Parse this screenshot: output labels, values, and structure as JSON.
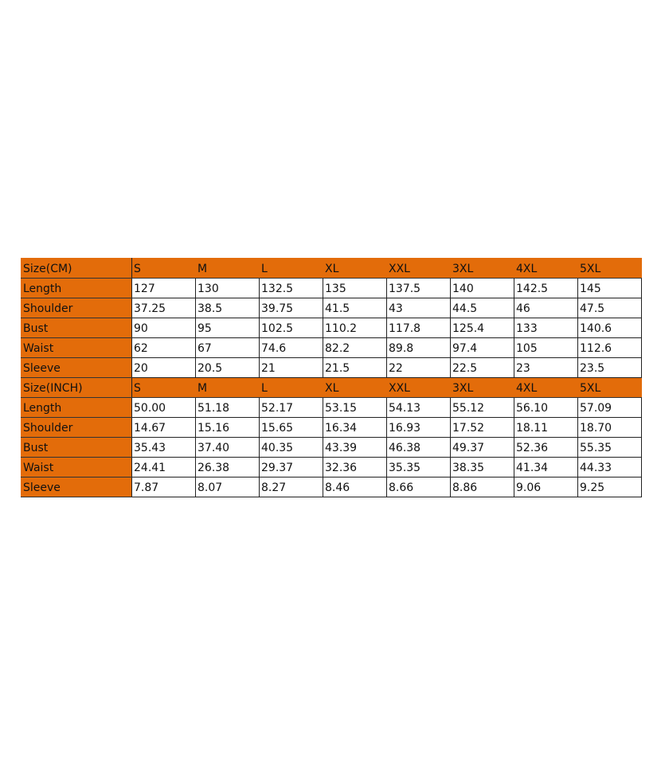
{
  "table": {
    "sections": [
      {
        "header": [
          "Size(CM)",
          "S",
          "M",
          "L",
          "XL",
          "XXL",
          "3XL",
          "4XL",
          "5XL"
        ],
        "rows": [
          [
            "Length",
            "127",
            "130",
            "132.5",
            "135",
            "137.5",
            "140",
            "142.5",
            "145"
          ],
          [
            "Shoulder",
            "37.25",
            "38.5",
            "39.75",
            "41.5",
            "43",
            "44.5",
            "46",
            "47.5"
          ],
          [
            "Bust",
            "90",
            "95",
            "102.5",
            "110.2",
            "117.8",
            "125.4",
            "133",
            "140.6"
          ],
          [
            "Waist",
            "62",
            "67",
            "74.6",
            "82.2",
            "89.8",
            "97.4",
            "105",
            "112.6"
          ],
          [
            "Sleeve",
            "20",
            "20.5",
            "21",
            "21.5",
            "22",
            "22.5",
            "23",
            "23.5"
          ]
        ]
      },
      {
        "header": [
          "Size(INCH)",
          "S",
          "M",
          "L",
          "XL",
          "XXL",
          "3XL",
          "4XL",
          "5XL"
        ],
        "rows": [
          [
            "Length",
            "50.00",
            "51.18",
            "52.17",
            "53.15",
            "54.13",
            "55.12",
            "56.10",
            "57.09"
          ],
          [
            "Shoulder",
            "14.67",
            "15.16",
            "15.65",
            "16.34",
            "16.93",
            "17.52",
            "18.11",
            "18.70"
          ],
          [
            "Bust",
            "35.43",
            "37.40",
            "40.35",
            "43.39",
            "46.38",
            "49.37",
            "52.36",
            "55.35"
          ],
          [
            "Waist",
            "24.41",
            "26.38",
            "29.37",
            "32.36",
            "35.35",
            "38.35",
            "41.34",
            "44.33"
          ],
          [
            "Sleeve",
            "7.87",
            "8.07",
            "8.27",
            "8.46",
            "8.66",
            "8.86",
            "9.06",
            "9.25"
          ]
        ]
      }
    ]
  }
}
